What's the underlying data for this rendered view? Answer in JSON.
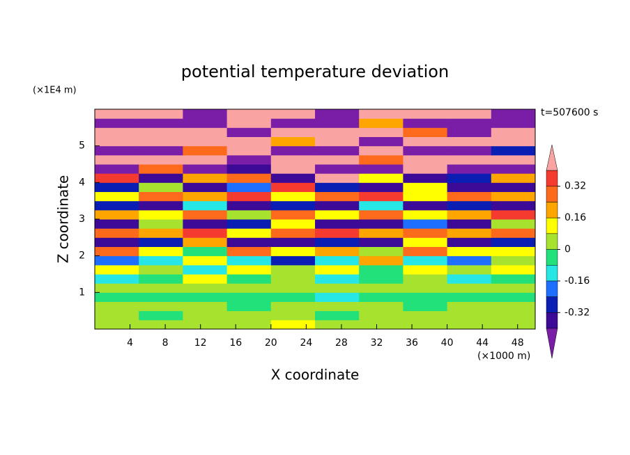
{
  "chart_data": {
    "type": "filled-contour",
    "title": "potential temperature deviation",
    "y_unit": "(×1E4 m)",
    "ylabel": "Z coordinate",
    "xlabel": "X coordinate",
    "x_unit": "(×1000 m)",
    "annotation": "t=507600 s",
    "xlim": [
      0,
      50
    ],
    "xticks": [
      4,
      8,
      12,
      16,
      20,
      24,
      28,
      32,
      36,
      40,
      44,
      48
    ],
    "ylim": [
      0,
      6
    ],
    "yticks": [
      1,
      2,
      3,
      4,
      5
    ],
    "levels": [
      -0.4,
      -0.32,
      -0.24,
      -0.16,
      -0.08,
      0,
      0.08,
      0.16,
      0.24,
      0.32,
      0.4
    ],
    "colors": [
      "#7a1ea8",
      "#3c0a96",
      "#0a1eb4",
      "#1e6eff",
      "#27e6e6",
      "#22e07a",
      "#a6e22e",
      "#ffff00",
      "#ffa500",
      "#fd6a1b",
      "#f53b2f",
      "#f9a3a3"
    ],
    "colorbar_ticks": [
      -0.32,
      -0.16,
      0,
      0.16,
      0.32
    ],
    "z": [
      [
        0.02,
        0.04,
        0.02,
        0.06,
        0.1,
        0.04,
        0.02,
        0.06,
        0.04,
        0.02
      ],
      [
        0.04,
        -0.02,
        0.02,
        0.04,
        0.06,
        -0.02,
        0.02,
        0.04,
        0.02,
        0.04
      ],
      [
        0.02,
        0.04,
        0.04,
        -0.02,
        0.02,
        0.04,
        0.02,
        -0.02,
        0.04,
        0.02
      ],
      [
        -0.04,
        -0.02,
        -0.06,
        -0.04,
        -0.02,
        -0.1,
        -0.04,
        -0.06,
        -0.02,
        -0.04
      ],
      [
        0.02,
        0.04,
        0.02,
        0.06,
        0.02,
        0.04,
        0.02,
        0.04,
        0.06,
        0.02
      ],
      [
        -0.1,
        -0.04,
        0.1,
        -0.06,
        0.02,
        -0.12,
        -0.04,
        0.06,
        -0.1,
        -0.02
      ],
      [
        0.12,
        0.06,
        -0.1,
        0.14,
        0.06,
        0.1,
        -0.06,
        0.12,
        0.04,
        0.1
      ],
      [
        -0.2,
        -0.12,
        0.1,
        -0.14,
        -0.26,
        -0.1,
        0.18,
        -0.12,
        -0.2,
        0.06
      ],
      [
        0.26,
        0.1,
        -0.06,
        0.3,
        0.12,
        0.2,
        0.06,
        0.28,
        0.14,
        0.1
      ],
      [
        -0.36,
        -0.3,
        0.2,
        -0.38,
        -0.34,
        -0.3,
        -0.36,
        0.1,
        -0.34,
        -0.3
      ],
      [
        0.3,
        0.2,
        0.36,
        0.14,
        0.26,
        0.34,
        0.2,
        0.3,
        0.16,
        0.28
      ],
      [
        -0.36,
        0.06,
        -0.38,
        -0.3,
        0.1,
        -0.36,
        -0.34,
        -0.2,
        -0.38,
        0.04
      ],
      [
        0.2,
        0.1,
        0.26,
        0.06,
        0.3,
        0.14,
        0.24,
        0.1,
        0.2,
        0.34
      ],
      [
        -0.32,
        -0.38,
        -0.1,
        -0.36,
        -0.26,
        -0.38,
        -0.12,
        -0.34,
        -0.3,
        -0.38
      ],
      [
        0.14,
        0.3,
        0.2,
        0.36,
        0.1,
        0.26,
        0.32,
        0.12,
        0.3,
        0.2
      ],
      [
        -0.3,
        0.06,
        -0.36,
        -0.2,
        0.34,
        -0.3,
        -0.38,
        0.1,
        -0.34,
        -0.36
      ],
      [
        0.36,
        -0.38,
        0.2,
        0.3,
        -0.36,
        0.44,
        0.1,
        -0.38,
        -0.3,
        0.2
      ],
      [
        -0.44,
        0.3,
        -0.46,
        -0.38,
        0.44,
        -0.42,
        -0.44,
        0.42,
        -0.46,
        -0.44
      ],
      [
        0.46,
        0.44,
        0.5,
        -0.44,
        0.46,
        0.48,
        0.3,
        0.46,
        0.44,
        0.48
      ],
      [
        -0.46,
        -0.48,
        0.3,
        0.46,
        -0.44,
        -0.46,
        0.44,
        -0.48,
        -0.46,
        -0.3
      ],
      [
        0.48,
        0.46,
        0.5,
        0.48,
        0.2,
        0.46,
        -0.44,
        0.46,
        0.48,
        0.5
      ],
      [
        0.44,
        0.48,
        0.46,
        -0.46,
        0.48,
        0.44,
        0.46,
        0.3,
        -0.44,
        0.46
      ],
      [
        -0.46,
        -0.48,
        -0.44,
        0.46,
        -0.46,
        -0.48,
        0.2,
        -0.46,
        -0.48,
        -0.44
      ],
      [
        0.46,
        0.44,
        -0.46,
        0.48,
        0.46,
        -0.44,
        0.46,
        0.44,
        0.46,
        -0.46
      ]
    ]
  }
}
